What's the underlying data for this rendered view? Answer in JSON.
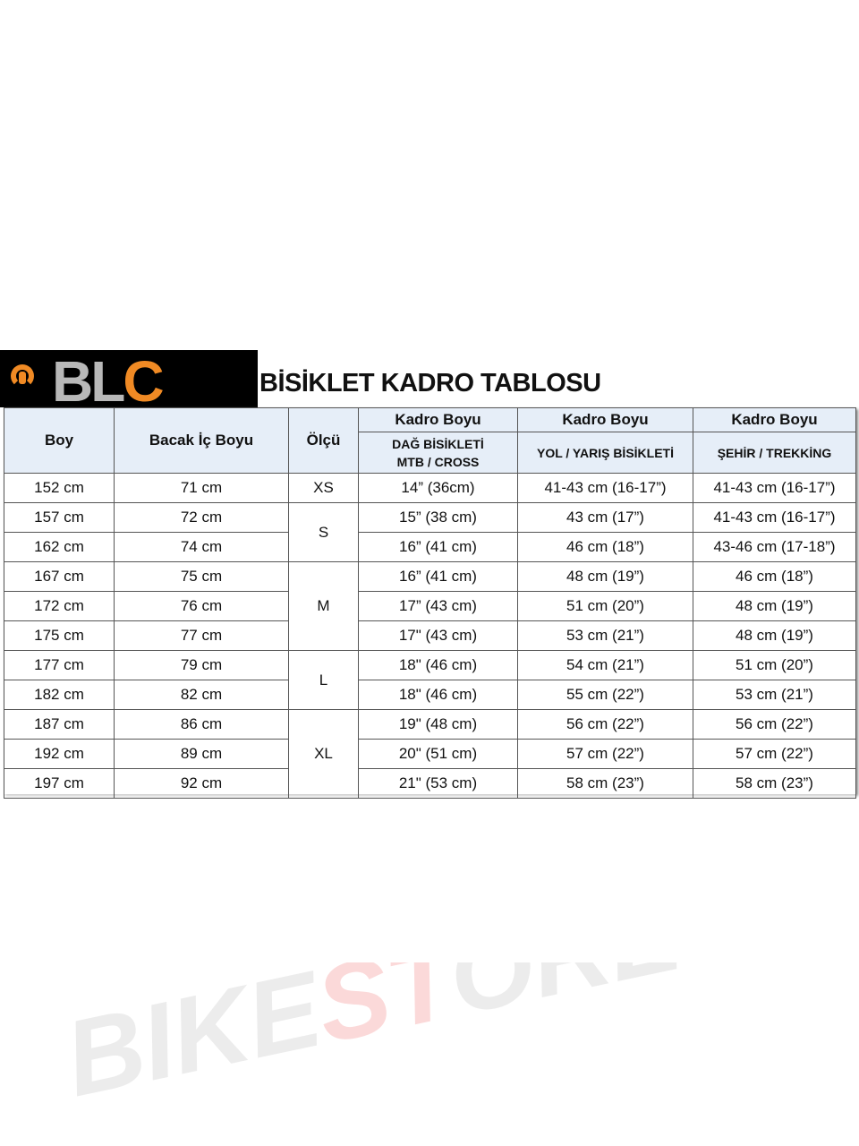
{
  "logo": {
    "text_gray": "BL",
    "text_orange": "C"
  },
  "title": "BİSİKLET KADRO TABLOSU",
  "watermark": "BIKESTORE",
  "colors": {
    "logo_orange": "#f08a24",
    "header_bg": "#e6eef8"
  },
  "headers": {
    "boy": "Boy",
    "bacak": "Bacak İç Boyu",
    "olcu": "Ölçü",
    "kadro1": "Kadro Boyu",
    "kadro2": "Kadro Boyu",
    "kadro3": "Kadro Boyu",
    "sub1_line1": "DAĞ BİSİKLETİ",
    "sub1_line2": "MTB / CROSS",
    "sub2": "YOL / YARIŞ BİSİKLETİ",
    "sub3": "ŞEHİR / TREKKİNG"
  },
  "sizes": [
    "XS",
    "S",
    "M",
    "L",
    "XL"
  ],
  "rows": [
    {
      "boy": "152 cm",
      "bacak": "71 cm",
      "mtb": "14” (36cm)",
      "yol": "41-43 cm (16-17”)",
      "sehir": "41-43 cm (16-17”)"
    },
    {
      "boy": "157 cm",
      "bacak": "72 cm",
      "mtb": "15” (38 cm)",
      "yol": "43 cm (17”)",
      "sehir": "41-43 cm (16-17”)"
    },
    {
      "boy": "162 cm",
      "bacak": "74 cm",
      "mtb": "16” (41 cm)",
      "yol": "46 cm (18”)",
      "sehir": "43-46 cm (17-18”)"
    },
    {
      "boy": "167 cm",
      "bacak": "75 cm",
      "mtb": "16” (41 cm)",
      "yol": "48 cm (19”)",
      "sehir": "46 cm (18”)"
    },
    {
      "boy": "172 cm",
      "bacak": "76 cm",
      "mtb": "17” (43 cm)",
      "yol": "51 cm (20”)",
      "sehir": "48 cm (19”)"
    },
    {
      "boy": "175 cm",
      "bacak": "77 cm",
      "mtb": "17\" (43 cm)",
      "yol": "53 cm (21”)",
      "sehir": "48 cm (19”)"
    },
    {
      "boy": "177 cm",
      "bacak": "79 cm",
      "mtb": "18\" (46 cm)",
      "yol": "54 cm (21”)",
      "sehir": "51 cm (20”)"
    },
    {
      "boy": "182 cm",
      "bacak": "82 cm",
      "mtb": "18\" (46 cm)",
      "yol": "55 cm (22”)",
      "sehir": "53 cm (21”)"
    },
    {
      "boy": "187 cm",
      "bacak": "86 cm",
      "mtb": "19\" (48 cm)",
      "yol": "56 cm (22”)",
      "sehir": "56 cm (22”)"
    },
    {
      "boy": "192 cm",
      "bacak": "89 cm",
      "mtb": "20\" (51 cm)",
      "yol": "57 cm (22”)",
      "sehir": "57 cm (22”)"
    },
    {
      "boy": "197 cm",
      "bacak": "92 cm",
      "mtb": "21\" (53 cm)",
      "yol": "58 cm (23”)",
      "sehir": "58 cm (23”)"
    }
  ]
}
